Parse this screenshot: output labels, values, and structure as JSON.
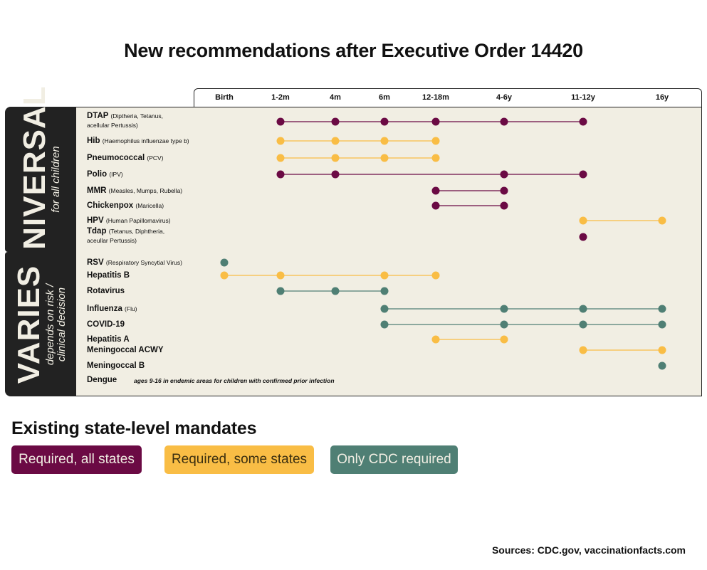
{
  "title": "New recommendations after Executive Order 14420",
  "sources": "Sources: CDC.gov, vaccinationfacts.com",
  "colors": {
    "required_all_states": "#6b0a44",
    "required_some_states": "#f9bd45",
    "only_cdc_required": "#4f7f74",
    "panel_background": "#f1eee3",
    "side_label_background": "#222222"
  },
  "groups": {
    "universal": {
      "label": "UNIVERSAL",
      "sublabel": "for all children"
    },
    "varies": {
      "label": "VARIES",
      "sublabel_line1": "depends on risk /",
      "sublabel_line2": "clinical decision"
    }
  },
  "legend": {
    "title": "Existing state-level mandates",
    "items": [
      {
        "key": "all",
        "label": "Required, all states"
      },
      {
        "key": "some",
        "label": "Required, some states"
      },
      {
        "key": "cdc",
        "label": "Only CDC required"
      }
    ]
  },
  "chart_data": {
    "type": "timeline",
    "columns": [
      "Birth",
      "1-2m",
      "4m",
      "6m",
      "12-18m",
      "4-6y",
      "11-12y",
      "16y"
    ],
    "rows": [
      {
        "group": "universal",
        "name": "DTAP",
        "detail": "(Diptheria, Tetanus,",
        "detail2": "acellular Pertussis)",
        "status": "all",
        "points": [
          "1-2m",
          "4m",
          "6m",
          "12-18m",
          "4-6y",
          "11-12y"
        ]
      },
      {
        "group": "universal",
        "name": "Hib",
        "detail": "(Haemophilus influenzae type b)",
        "status": "some",
        "points": [
          "1-2m",
          "4m",
          "6m",
          "12-18m"
        ]
      },
      {
        "group": "universal",
        "name": "Pneumococcal",
        "detail": "(PCV)",
        "status": "some",
        "points": [
          "1-2m",
          "4m",
          "6m",
          "12-18m"
        ]
      },
      {
        "group": "universal",
        "name": "Polio",
        "detail": "(IPV)",
        "status": "all",
        "points": [
          "1-2m",
          "4m",
          "4-6y",
          "11-12y"
        ]
      },
      {
        "group": "universal",
        "name": "MMR",
        "detail": "(Measles, Mumps, Rubella)",
        "status": "all",
        "points": [
          "12-18m",
          "4-6y"
        ]
      },
      {
        "group": "universal",
        "name": "Chickenpox",
        "detail": "(Maricella)",
        "status": "all",
        "points": [
          "12-18m",
          "4-6y"
        ]
      },
      {
        "group": "universal",
        "name": "HPV",
        "detail": "(Human Papillomavirus)",
        "status": "some",
        "points": [
          "11-12y",
          "16y"
        ]
      },
      {
        "group": "universal",
        "name": "Tdap",
        "detail": "(Tetanus, Diphtheria,",
        "detail2": "aceullar Pertussis)",
        "status": "all",
        "points": [
          "11-12y"
        ]
      },
      {
        "group": "varies",
        "name": "RSV",
        "detail": "(Respiratory Syncytial Virus)",
        "status": "cdc",
        "points": [
          "Birth"
        ]
      },
      {
        "group": "varies",
        "name": "Hepatitis B",
        "detail": "",
        "status": "some",
        "points": [
          "Birth",
          "1-2m",
          "6m",
          "12-18m"
        ]
      },
      {
        "group": "varies",
        "name": "Rotavirus",
        "detail": "",
        "status": "cdc",
        "points": [
          "1-2m",
          "4m",
          "6m"
        ]
      },
      {
        "group": "varies",
        "name": "Influenza",
        "detail": "(Flu)",
        "status": "cdc",
        "points": [
          "6m",
          "4-6y",
          "11-12y",
          "16y"
        ]
      },
      {
        "group": "varies",
        "name": "COVID-19",
        "detail": "",
        "status": "cdc",
        "points": [
          "6m",
          "4-6y",
          "11-12y",
          "16y"
        ]
      },
      {
        "group": "varies",
        "name": "Hepatitis A",
        "detail": "",
        "status": "some",
        "points": [
          "12-18m",
          "4-6y"
        ]
      },
      {
        "group": "varies",
        "name": "Meningoccal ACWY",
        "detail": "",
        "status": "some",
        "points": [
          "11-12y",
          "16y"
        ]
      },
      {
        "group": "varies",
        "name": "Meningoccal B",
        "detail": "",
        "status": "cdc",
        "points": [
          "16y"
        ]
      },
      {
        "group": "varies",
        "name": "Dengue",
        "detail": "",
        "status": "none",
        "points": [],
        "note": "ages 9-16 in endemic areas for children with confirmed prior infection"
      }
    ]
  }
}
